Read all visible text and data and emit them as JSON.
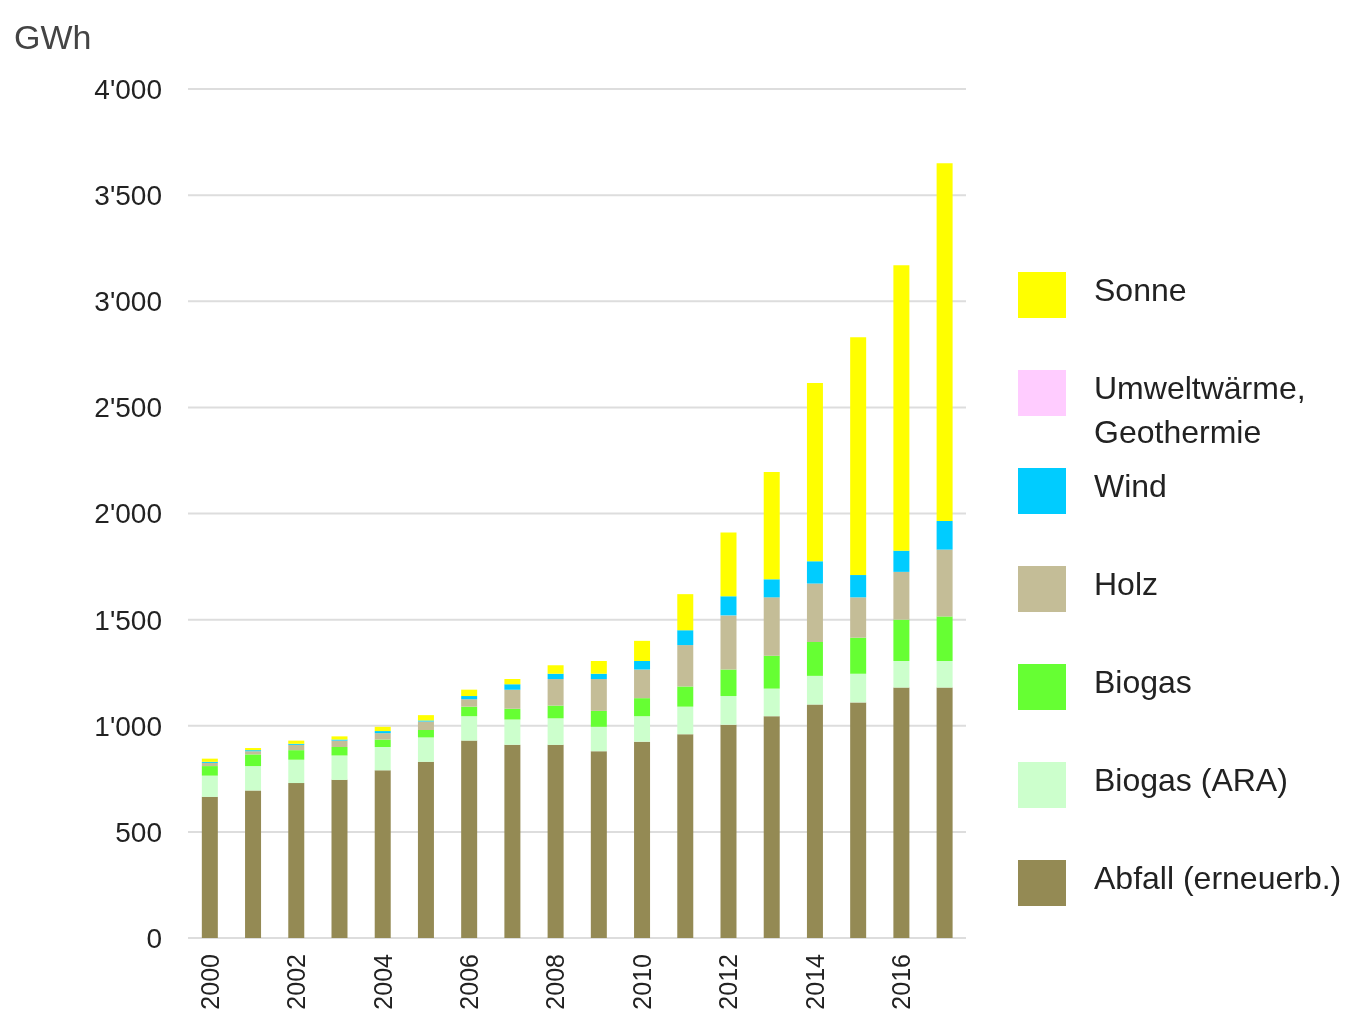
{
  "chart_data": {
    "type": "bar",
    "stacked": true,
    "ylabel": "GWh",
    "categories": [
      "2000",
      null,
      "2002",
      null,
      "2004",
      null,
      "2006",
      null,
      "2008",
      null,
      "2010",
      null,
      "2012",
      null,
      "2014",
      null,
      "2016",
      null
    ],
    "series": [
      {
        "name": "Abfall (erneuerb.)",
        "color": "#948a54",
        "values": [
          665,
          695,
          730,
          745,
          790,
          830,
          930,
          910,
          910,
          880,
          925,
          960,
          1005,
          1045,
          1100,
          1110,
          1180,
          1180
        ]
      },
      {
        "name": "Biogas (ARA)",
        "color": "#ccffcc",
        "values": [
          100,
          115,
          110,
          115,
          110,
          115,
          115,
          120,
          125,
          115,
          120,
          130,
          135,
          130,
          135,
          135,
          125,
          125
        ]
      },
      {
        "name": "Biogas",
        "color": "#66ff33",
        "values": [
          45,
          55,
          45,
          40,
          35,
          35,
          45,
          50,
          60,
          75,
          85,
          95,
          125,
          155,
          160,
          170,
          195,
          210
        ]
      },
      {
        "name": "Holz",
        "color": "#c4bd97",
        "values": [
          15,
          15,
          25,
          30,
          30,
          40,
          35,
          90,
          125,
          150,
          135,
          195,
          255,
          275,
          275,
          190,
          225,
          315
        ]
      },
      {
        "name": "Wind",
        "color": "#00ccff",
        "values": [
          5,
          5,
          5,
          5,
          10,
          5,
          15,
          25,
          25,
          25,
          40,
          70,
          90,
          85,
          105,
          105,
          100,
          135
        ]
      },
      {
        "name": "Umweltwärme, Geothermie",
        "color": "#ffccff",
        "values": [
          0,
          0,
          0,
          0,
          0,
          0,
          0,
          0,
          0,
          0,
          0,
          0,
          0,
          0,
          0,
          0,
          0,
          0
        ]
      },
      {
        "name": "Sonne",
        "color": "#ffff00",
        "values": [
          15,
          10,
          15,
          15,
          20,
          25,
          30,
          25,
          40,
          60,
          95,
          170,
          300,
          505,
          840,
          1120,
          1345,
          1685
        ]
      }
    ],
    "ylim": [
      0,
      4000
    ],
    "yticks": [
      {
        "value": 0,
        "label": "0"
      },
      {
        "value": 500,
        "label": "500"
      },
      {
        "value": 1000,
        "label": "1'000"
      },
      {
        "value": 1500,
        "label": "1'500"
      },
      {
        "value": 2000,
        "label": "2'000"
      },
      {
        "value": 2500,
        "label": "2'500"
      },
      {
        "value": 3000,
        "label": "3'000"
      },
      {
        "value": 3500,
        "label": "3'500"
      },
      {
        "value": 4000,
        "label": "4'000"
      }
    ],
    "grid": "y",
    "legend": "right"
  }
}
